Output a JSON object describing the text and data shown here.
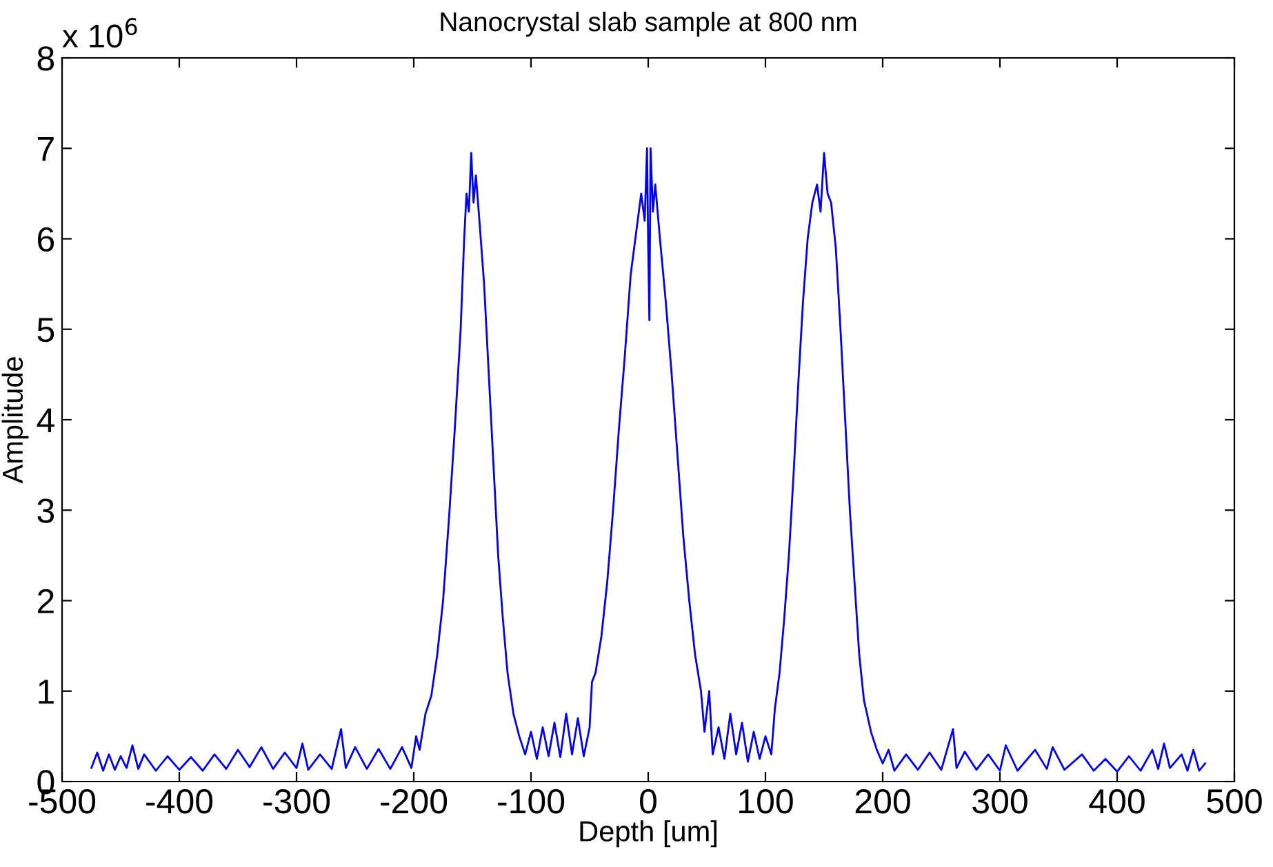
{
  "chart_data": {
    "type": "line",
    "title": "Nanocrystal slab sample at 800 nm",
    "xlabel": "Depth [um]",
    "ylabel": "Amplitude",
    "annotations": [
      "x 10$^{6}$"
    ],
    "xlim": [
      -500,
      500
    ],
    "xticks": [
      -500,
      -400,
      -300,
      -200,
      -100,
      0,
      100,
      200,
      300,
      400,
      500
    ],
    "ylim": [
      0,
      8
    ],
    "yticks": [
      0,
      1,
      2,
      3,
      4,
      5,
      6,
      7,
      8
    ],
    "grid": false,
    "legend": false,
    "series": [
      {
        "color": "#0000ff",
        "x": [
          -475,
          -470,
          -465,
          -460,
          -455,
          -450,
          -445,
          -440,
          -435,
          -430,
          -420,
          -410,
          -400,
          -390,
          -380,
          -370,
          -360,
          -350,
          -340,
          -330,
          -320,
          -310,
          -300,
          -295,
          -290,
          -280,
          -270,
          -262,
          -258,
          -250,
          -240,
          -230,
          -220,
          -210,
          -202,
          -198,
          -195,
          -190,
          -185,
          -180,
          -175,
          -170,
          -165,
          -160,
          -157,
          -155,
          -153,
          -151,
          -149,
          -147,
          -144,
          -140,
          -136,
          -132,
          -128,
          -124,
          -120,
          -115,
          -110,
          -105,
          -100,
          -95,
          -90,
          -85,
          -80,
          -75,
          -70,
          -65,
          -60,
          -55,
          -50,
          -48,
          -45,
          -40,
          -35,
          -30,
          -25,
          -20,
          -15,
          -10,
          -6,
          -3,
          -1,
          0,
          1,
          2,
          4,
          6,
          10,
          15,
          20,
          25,
          30,
          35,
          40,
          45,
          48,
          52,
          55,
          60,
          65,
          70,
          75,
          80,
          85,
          90,
          95,
          100,
          105,
          108,
          112,
          116,
          120,
          124,
          128,
          132,
          136,
          140,
          144,
          147,
          150,
          153,
          156,
          160,
          164,
          168,
          172,
          176,
          180,
          184,
          190,
          195,
          200,
          205,
          210,
          220,
          230,
          240,
          250,
          260,
          263,
          270,
          280,
          290,
          300,
          305,
          315,
          330,
          340,
          345,
          355,
          370,
          380,
          390,
          400,
          410,
          420,
          430,
          435,
          440,
          445,
          455,
          460,
          465,
          470,
          475
        ],
        "values": [
          0.15,
          0.32,
          0.12,
          0.3,
          0.13,
          0.28,
          0.15,
          0.4,
          0.14,
          0.3,
          0.12,
          0.28,
          0.13,
          0.27,
          0.12,
          0.3,
          0.14,
          0.35,
          0.16,
          0.38,
          0.14,
          0.32,
          0.15,
          0.42,
          0.13,
          0.3,
          0.14,
          0.58,
          0.15,
          0.38,
          0.14,
          0.36,
          0.14,
          0.38,
          0.15,
          0.5,
          0.35,
          0.75,
          0.95,
          1.4,
          2.0,
          2.9,
          3.9,
          5.0,
          6.0,
          6.5,
          6.3,
          6.95,
          6.4,
          6.7,
          6.2,
          5.5,
          4.5,
          3.5,
          2.5,
          1.8,
          1.2,
          0.75,
          0.5,
          0.3,
          0.55,
          0.25,
          0.6,
          0.28,
          0.65,
          0.27,
          0.75,
          0.3,
          0.7,
          0.28,
          0.6,
          1.1,
          1.2,
          1.6,
          2.2,
          3.0,
          3.9,
          4.7,
          5.6,
          6.1,
          6.5,
          6.2,
          7.0,
          5.9,
          5.1,
          7.0,
          6.3,
          6.6,
          6.0,
          5.3,
          4.5,
          3.6,
          2.7,
          2.0,
          1.4,
          1.0,
          0.55,
          1.0,
          0.3,
          0.6,
          0.25,
          0.75,
          0.3,
          0.65,
          0.22,
          0.55,
          0.25,
          0.5,
          0.3,
          0.8,
          1.2,
          1.8,
          2.5,
          3.4,
          4.4,
          5.3,
          6.0,
          6.4,
          6.6,
          6.3,
          6.95,
          6.5,
          6.4,
          5.9,
          5.0,
          4.0,
          3.0,
          2.2,
          1.4,
          0.9,
          0.55,
          0.35,
          0.2,
          0.35,
          0.12,
          0.3,
          0.13,
          0.32,
          0.13,
          0.58,
          0.15,
          0.33,
          0.13,
          0.3,
          0.12,
          0.4,
          0.12,
          0.35,
          0.14,
          0.38,
          0.13,
          0.3,
          0.12,
          0.25,
          0.11,
          0.28,
          0.12,
          0.35,
          0.14,
          0.42,
          0.15,
          0.3,
          0.12,
          0.35,
          0.12,
          0.2
        ]
      }
    ]
  }
}
